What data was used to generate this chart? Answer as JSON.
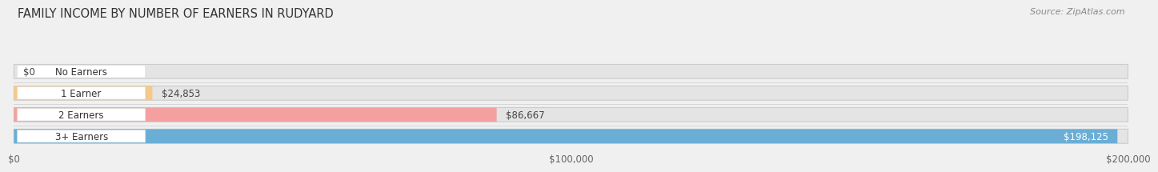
{
  "title": "FAMILY INCOME BY NUMBER OF EARNERS IN RUDYARD",
  "source": "Source: ZipAtlas.com",
  "categories": [
    "No Earners",
    "1 Earner",
    "2 Earners",
    "3+ Earners"
  ],
  "values": [
    0,
    24853,
    86667,
    198125
  ],
  "bar_colors": [
    "#f4a0bc",
    "#f5c98a",
    "#f4a0a0",
    "#6aaed6"
  ],
  "label_colors": [
    "#444444",
    "#444444",
    "#444444",
    "#ffffff"
  ],
  "value_labels": [
    "$0",
    "$24,853",
    "$86,667",
    "$198,125"
  ],
  "xlim": [
    0,
    200000
  ],
  "xticks": [
    0,
    100000,
    200000
  ],
  "xtick_labels": [
    "$0",
    "$100,000",
    "$200,000"
  ],
  "background_color": "#f0f0f0",
  "bar_bg_color": "#e4e4e4",
  "bar_height": 0.6,
  "title_fontsize": 10.5,
  "label_fontsize": 8.5,
  "value_fontsize": 8.5,
  "source_fontsize": 8
}
